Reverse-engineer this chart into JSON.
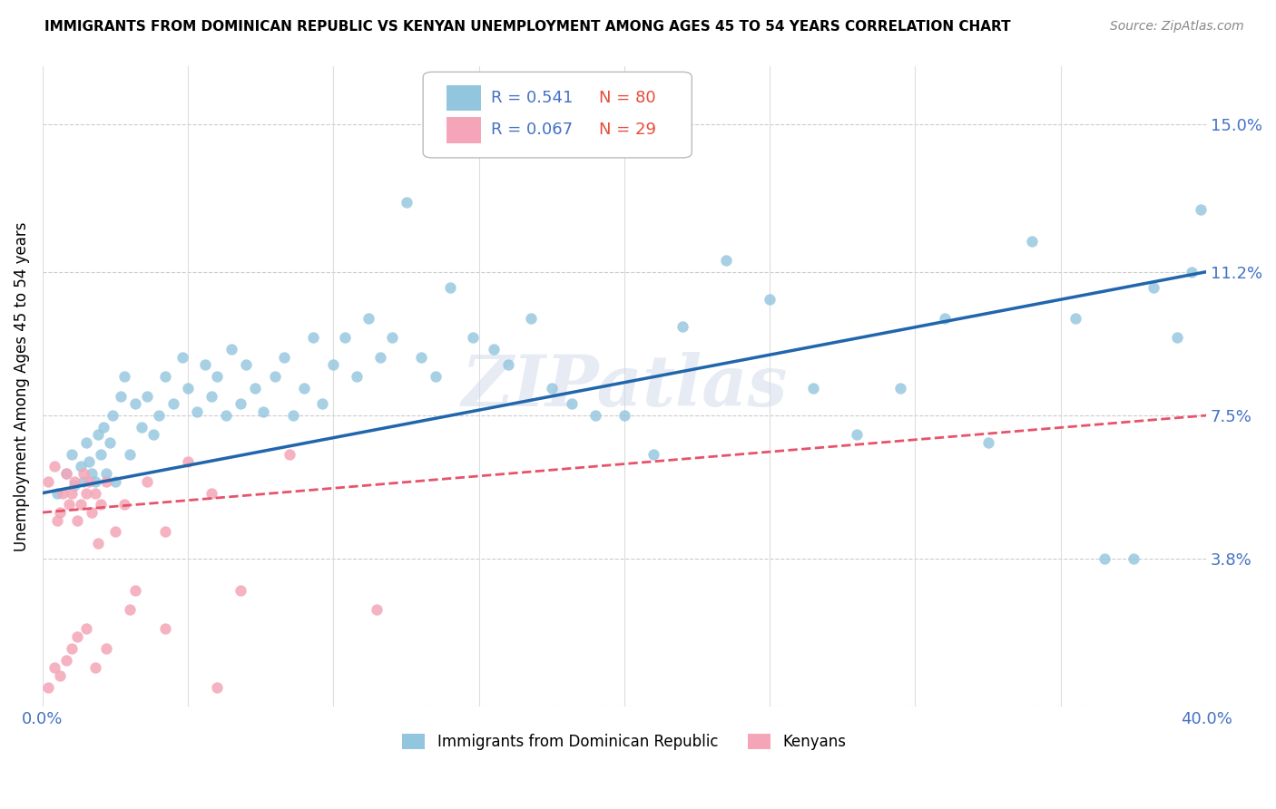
{
  "title": "IMMIGRANTS FROM DOMINICAN REPUBLIC VS KENYAN UNEMPLOYMENT AMONG AGES 45 TO 54 YEARS CORRELATION CHART",
  "source": "Source: ZipAtlas.com",
  "ylabel": "Unemployment Among Ages 45 to 54 years",
  "xlim": [
    0.0,
    0.4
  ],
  "ylim": [
    0.0,
    0.165
  ],
  "yticks": [
    0.0,
    0.038,
    0.075,
    0.112,
    0.15
  ],
  "ytick_labels": [
    "",
    "3.8%",
    "7.5%",
    "11.2%",
    "15.0%"
  ],
  "watermark": "ZIPatlas",
  "legend_blue_r": "R = 0.541",
  "legend_blue_n": "N = 80",
  "legend_pink_r": "R = 0.067",
  "legend_pink_n": "N = 29",
  "blue_color": "#92c5de",
  "pink_color": "#f4a6b8",
  "blue_line_color": "#2166ac",
  "pink_line_color": "#e8526a",
  "blue_scatter_x": [
    0.005,
    0.008,
    0.01,
    0.011,
    0.013,
    0.014,
    0.015,
    0.016,
    0.017,
    0.018,
    0.019,
    0.02,
    0.021,
    0.022,
    0.023,
    0.024,
    0.025,
    0.027,
    0.028,
    0.03,
    0.032,
    0.034,
    0.036,
    0.038,
    0.04,
    0.042,
    0.045,
    0.048,
    0.05,
    0.053,
    0.056,
    0.058,
    0.06,
    0.063,
    0.065,
    0.068,
    0.07,
    0.073,
    0.076,
    0.08,
    0.083,
    0.086,
    0.09,
    0.093,
    0.096,
    0.1,
    0.104,
    0.108,
    0.112,
    0.116,
    0.12,
    0.125,
    0.13,
    0.135,
    0.14,
    0.148,
    0.155,
    0.16,
    0.168,
    0.175,
    0.182,
    0.19,
    0.2,
    0.21,
    0.22,
    0.235,
    0.25,
    0.265,
    0.28,
    0.295,
    0.31,
    0.325,
    0.34,
    0.355,
    0.365,
    0.375,
    0.382,
    0.39,
    0.395,
    0.398
  ],
  "blue_scatter_y": [
    0.055,
    0.06,
    0.065,
    0.057,
    0.062,
    0.058,
    0.068,
    0.063,
    0.06,
    0.058,
    0.07,
    0.065,
    0.072,
    0.06,
    0.068,
    0.075,
    0.058,
    0.08,
    0.085,
    0.065,
    0.078,
    0.072,
    0.08,
    0.07,
    0.075,
    0.085,
    0.078,
    0.09,
    0.082,
    0.076,
    0.088,
    0.08,
    0.085,
    0.075,
    0.092,
    0.078,
    0.088,
    0.082,
    0.076,
    0.085,
    0.09,
    0.075,
    0.082,
    0.095,
    0.078,
    0.088,
    0.095,
    0.085,
    0.1,
    0.09,
    0.095,
    0.13,
    0.09,
    0.085,
    0.108,
    0.095,
    0.092,
    0.088,
    0.1,
    0.082,
    0.078,
    0.075,
    0.075,
    0.065,
    0.098,
    0.115,
    0.105,
    0.082,
    0.07,
    0.082,
    0.1,
    0.068,
    0.12,
    0.1,
    0.038,
    0.038,
    0.108,
    0.095,
    0.112,
    0.128
  ],
  "pink_scatter_x": [
    0.002,
    0.004,
    0.005,
    0.006,
    0.007,
    0.008,
    0.009,
    0.01,
    0.011,
    0.012,
    0.013,
    0.014,
    0.015,
    0.016,
    0.017,
    0.018,
    0.019,
    0.02,
    0.022,
    0.025,
    0.028,
    0.032,
    0.036,
    0.042,
    0.05,
    0.058,
    0.068,
    0.085,
    0.115
  ],
  "pink_scatter_y": [
    0.058,
    0.062,
    0.048,
    0.05,
    0.055,
    0.06,
    0.052,
    0.055,
    0.058,
    0.048,
    0.052,
    0.06,
    0.055,
    0.058,
    0.05,
    0.055,
    0.042,
    0.052,
    0.058,
    0.045,
    0.052,
    0.03,
    0.058,
    0.045,
    0.063,
    0.055,
    0.03,
    0.065,
    0.025
  ],
  "pink_extra_low_x": [
    0.002,
    0.004,
    0.006,
    0.008,
    0.01,
    0.012,
    0.015,
    0.018,
    0.022,
    0.03,
    0.042,
    0.06
  ],
  "pink_extra_low_y": [
    0.005,
    0.01,
    0.008,
    0.012,
    0.015,
    0.018,
    0.02,
    0.01,
    0.015,
    0.025,
    0.02,
    0.005
  ]
}
